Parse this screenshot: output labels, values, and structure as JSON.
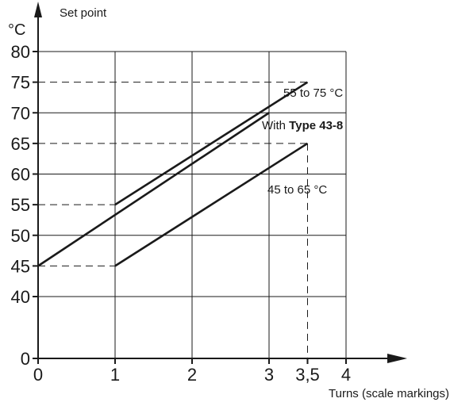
{
  "chart_data": {
    "type": "line",
    "ylabel_unit": "°C",
    "ylabel": "Set point",
    "xlabel": "Turns (scale markings)",
    "x_ticks": [
      "0",
      "1",
      "2",
      "3",
      "3,5",
      "4"
    ],
    "y_ticks": [
      "0",
      "40",
      "45",
      "50",
      "55",
      "60",
      "65",
      "70",
      "75",
      "80"
    ],
    "xlim": [
      0,
      4
    ],
    "ylim": [
      0,
      80
    ],
    "y_axis_break": [
      0,
      40
    ],
    "grid": true,
    "series": [
      {
        "name": "55 to 75 °C",
        "x": [
          1,
          3.5
        ],
        "y": [
          55,
          75
        ]
      },
      {
        "name": "With Type 43-8",
        "name_prefix": "With ",
        "name_bold": "Type 43-8",
        "x": [
          0,
          3
        ],
        "y": [
          45,
          70
        ]
      },
      {
        "name": "45 to 65 °C",
        "x": [
          1,
          3.5
        ],
        "y": [
          45,
          65
        ]
      }
    ],
    "reference_lines": [
      {
        "y": 75,
        "x_end": 3.5
      },
      {
        "y": 65,
        "x_end": 3.5
      },
      {
        "y": 55,
        "x_end": 1
      },
      {
        "y": 45,
        "x_end": 1
      }
    ],
    "colors": {
      "ink": "#1a1a1a",
      "background": "#ffffff"
    }
  }
}
